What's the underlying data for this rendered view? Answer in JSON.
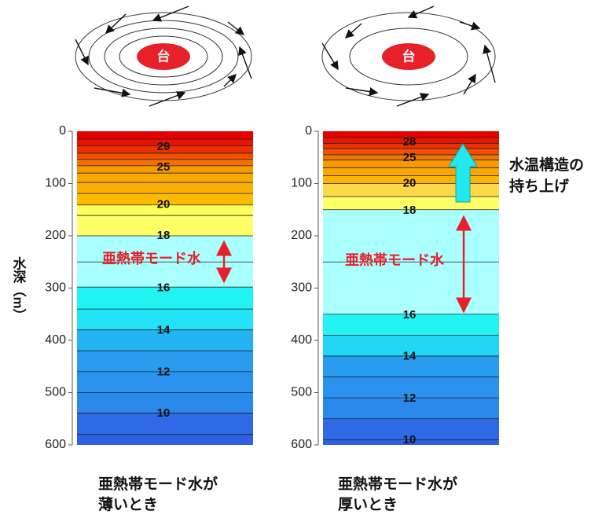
{
  "typhoon_label": "台",
  "y_axis_label": "水深（m）",
  "annotation": [
    "水温構造の",
    "持ち上げ"
  ],
  "chart_data": [
    {
      "type": "layers",
      "ylim": [
        0,
        600
      ],
      "yticks": [
        0,
        100,
        200,
        300,
        400,
        500,
        600
      ],
      "boundaries": [
        0,
        15,
        28,
        42,
        54,
        66,
        80,
        98,
        119,
        141,
        161,
        200,
        250,
        298,
        340,
        380,
        420,
        460,
        500,
        539,
        580,
        600
      ],
      "colors": [
        "#e60000",
        "#e81400",
        "#ec3000",
        "#f05000",
        "#f47000",
        "#f79a00",
        "#f9a600",
        "#fbb000",
        "#fcba00",
        "#ffff5a",
        "#ffff66",
        "#aaffff",
        "#aaffff",
        "#22f4f4",
        "#22e2f6",
        "#22b4f2",
        "#2a9cf0",
        "#2a92ee",
        "#2a8aec",
        "#2f6ae6",
        "#2f60e4"
      ],
      "labels": [
        {
          "value": 29,
          "depth": 30
        },
        {
          "value": 25,
          "depth": 69
        },
        {
          "value": 20,
          "depth": 141
        },
        {
          "value": 18,
          "depth": 200
        },
        {
          "value": 16,
          "depth": 300
        },
        {
          "value": 14,
          "depth": 381
        },
        {
          "value": 12,
          "depth": 461
        },
        {
          "value": 10,
          "depth": 540
        }
      ],
      "mode_water_label": "亜熱帯モード水",
      "caption": [
        "亜熱帯モード水が",
        "薄いとき"
      ]
    },
    {
      "type": "layers",
      "ylim": [
        0,
        600
      ],
      "yticks": [
        0,
        100,
        200,
        300,
        400,
        500,
        600
      ],
      "boundaries": [
        0,
        12,
        23,
        33,
        45,
        55,
        70,
        85,
        100,
        125,
        150,
        250,
        350,
        390,
        430,
        470,
        510,
        550,
        590,
        600
      ],
      "colors": [
        "#e60000",
        "#e81400",
        "#ec3000",
        "#f05000",
        "#f47800",
        "#f79a00",
        "#f9a800",
        "#fbb400",
        "#ffd84a",
        "#ffff66",
        "#aaffff",
        "#aaffff",
        "#22f4f4",
        "#22d6f6",
        "#2a9cf0",
        "#2a92ee",
        "#2a8aec",
        "#2f6ae6",
        "#2f60e4"
      ],
      "labels": [
        {
          "value": 28,
          "depth": 21
        },
        {
          "value": 25,
          "depth": 51
        },
        {
          "value": 20,
          "depth": 100
        },
        {
          "value": 18,
          "depth": 152
        },
        {
          "value": 16,
          "depth": 352
        },
        {
          "value": 14,
          "depth": 431
        },
        {
          "value": 12,
          "depth": 511
        },
        {
          "value": 10,
          "depth": 591
        }
      ],
      "mode_water_label": "亜熱帯モード水",
      "caption": [
        "亜熱帯モード水が",
        "厚いとき"
      ]
    }
  ]
}
